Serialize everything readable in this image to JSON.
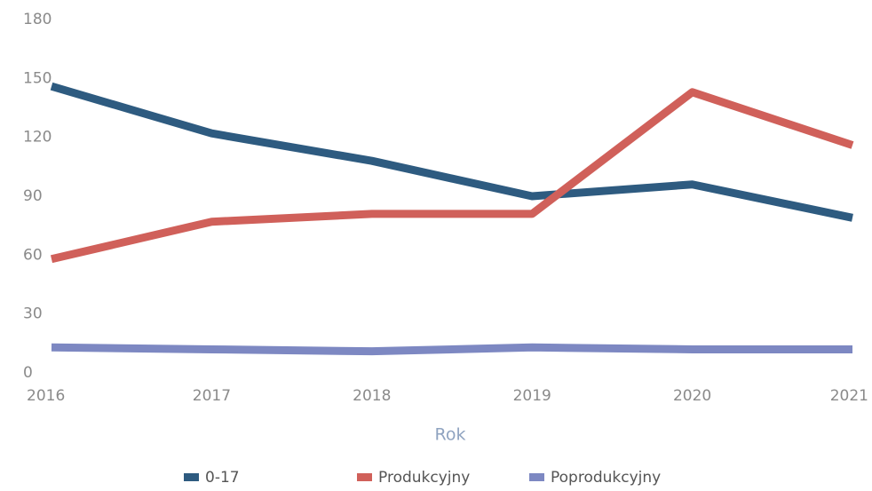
{
  "chart_data": {
    "type": "line",
    "x_label": "Rok",
    "categories": [
      "2016",
      "2017",
      "2018",
      "2019",
      "2020",
      "2021"
    ],
    "series": [
      {
        "name": "0-17",
        "color": "#2e5b80",
        "values": [
          146,
          122,
          108,
          90,
          96,
          79
        ]
      },
      {
        "name": "Produkcyjny",
        "color": "#d0605a",
        "values": [
          58,
          77,
          81,
          81,
          143,
          116
        ]
      },
      {
        "name": "Poprodukcyjny",
        "color": "#7d88c2",
        "values": [
          13,
          12,
          11,
          13,
          12,
          12
        ]
      }
    ],
    "ylim": [
      0,
      180
    ],
    "yticks": [
      0,
      30,
      60,
      90,
      120,
      150,
      180
    ],
    "grid": false,
    "legend": "bottom"
  }
}
